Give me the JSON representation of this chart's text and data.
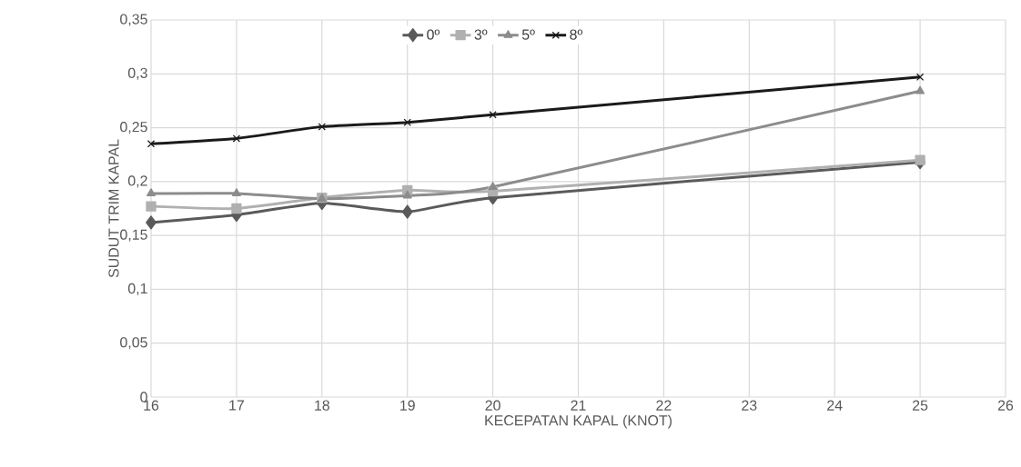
{
  "chart_data": {
    "type": "line",
    "xlabel": "KECEPATAN KAPAL (KNOT)",
    "ylabel": "SUDUT TRIM KAPAL",
    "x": [
      16,
      17,
      18,
      19,
      20,
      25
    ],
    "series": [
      {
        "name": "0º",
        "color": "#5a5a5a",
        "marker": "diamond",
        "values": [
          0.162,
          0.169,
          0.18,
          0.172,
          0.185,
          0.218
        ]
      },
      {
        "name": "3º",
        "color": "#b0b0b0",
        "marker": "square",
        "values": [
          0.177,
          0.175,
          0.185,
          0.192,
          0.191,
          0.22
        ]
      },
      {
        "name": "5º",
        "color": "#8c8c8c",
        "marker": "triangle",
        "values": [
          0.189,
          0.189,
          0.184,
          0.187,
          0.195,
          0.284
        ]
      },
      {
        "name": "8º",
        "color": "#1a1a1a",
        "marker": "cross",
        "values": [
          0.235,
          0.24,
          0.251,
          0.255,
          0.262,
          0.297
        ]
      }
    ],
    "xlim": [
      16,
      26
    ],
    "xticks": [
      16,
      17,
      18,
      19,
      20,
      21,
      22,
      23,
      24,
      25,
      26
    ],
    "ylim": [
      0,
      0.35
    ],
    "yticks": [
      0,
      {
        "value": 0.05,
        "label": "0,05"
      },
      {
        "value": 0.1,
        "label": "0,1"
      },
      {
        "value": 0.15,
        "label": "0,15"
      },
      {
        "value": 0.2,
        "label": "0,2"
      },
      {
        "value": 0.25,
        "label": "0,25"
      },
      {
        "value": 0.3,
        "label": "0,3"
      },
      {
        "value": 0.35,
        "label": "0,35"
      }
    ],
    "grid": true,
    "legend": "top",
    "line_style": "solid"
  }
}
